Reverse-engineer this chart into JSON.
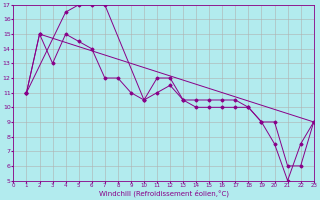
{
  "xlabel": "Windchill (Refroidissement éolien,°C)",
  "bg_color": "#b2ebee",
  "grid_color": "#b0b0b0",
  "line_color": "#880088",
  "xlim": [
    0,
    23
  ],
  "ylim": [
    5,
    17
  ],
  "xticks": [
    0,
    1,
    2,
    3,
    4,
    5,
    6,
    7,
    8,
    9,
    10,
    11,
    12,
    13,
    14,
    15,
    16,
    17,
    18,
    19,
    20,
    21,
    22,
    23
  ],
  "yticks": [
    5,
    6,
    7,
    8,
    9,
    10,
    11,
    12,
    13,
    14,
    15,
    16,
    17
  ],
  "line1_x": [
    1,
    4,
    5,
    6,
    7,
    10,
    11,
    12,
    13,
    14,
    15,
    16,
    17,
    18,
    19,
    20,
    21,
    22,
    23
  ],
  "line1_y": [
    11,
    16.5,
    17,
    17,
    17,
    10.5,
    12,
    12,
    10.5,
    10.5,
    10.5,
    10.5,
    10.5,
    10,
    9,
    7.5,
    5,
    7.5,
    9
  ],
  "line2_x": [
    1,
    2,
    3,
    4,
    5,
    6,
    7,
    8,
    9,
    10,
    11,
    12,
    13,
    14,
    15,
    16,
    17,
    18,
    19,
    20,
    21,
    22,
    23
  ],
  "line2_y": [
    11,
    15,
    13,
    15,
    14.5,
    14,
    12,
    12,
    11,
    10.5,
    11,
    11.5,
    10.5,
    10,
    10,
    10,
    10,
    10,
    9,
    9,
    6,
    6,
    9
  ],
  "line3_x": [
    1,
    2,
    23
  ],
  "line3_y": [
    11,
    15,
    9
  ]
}
